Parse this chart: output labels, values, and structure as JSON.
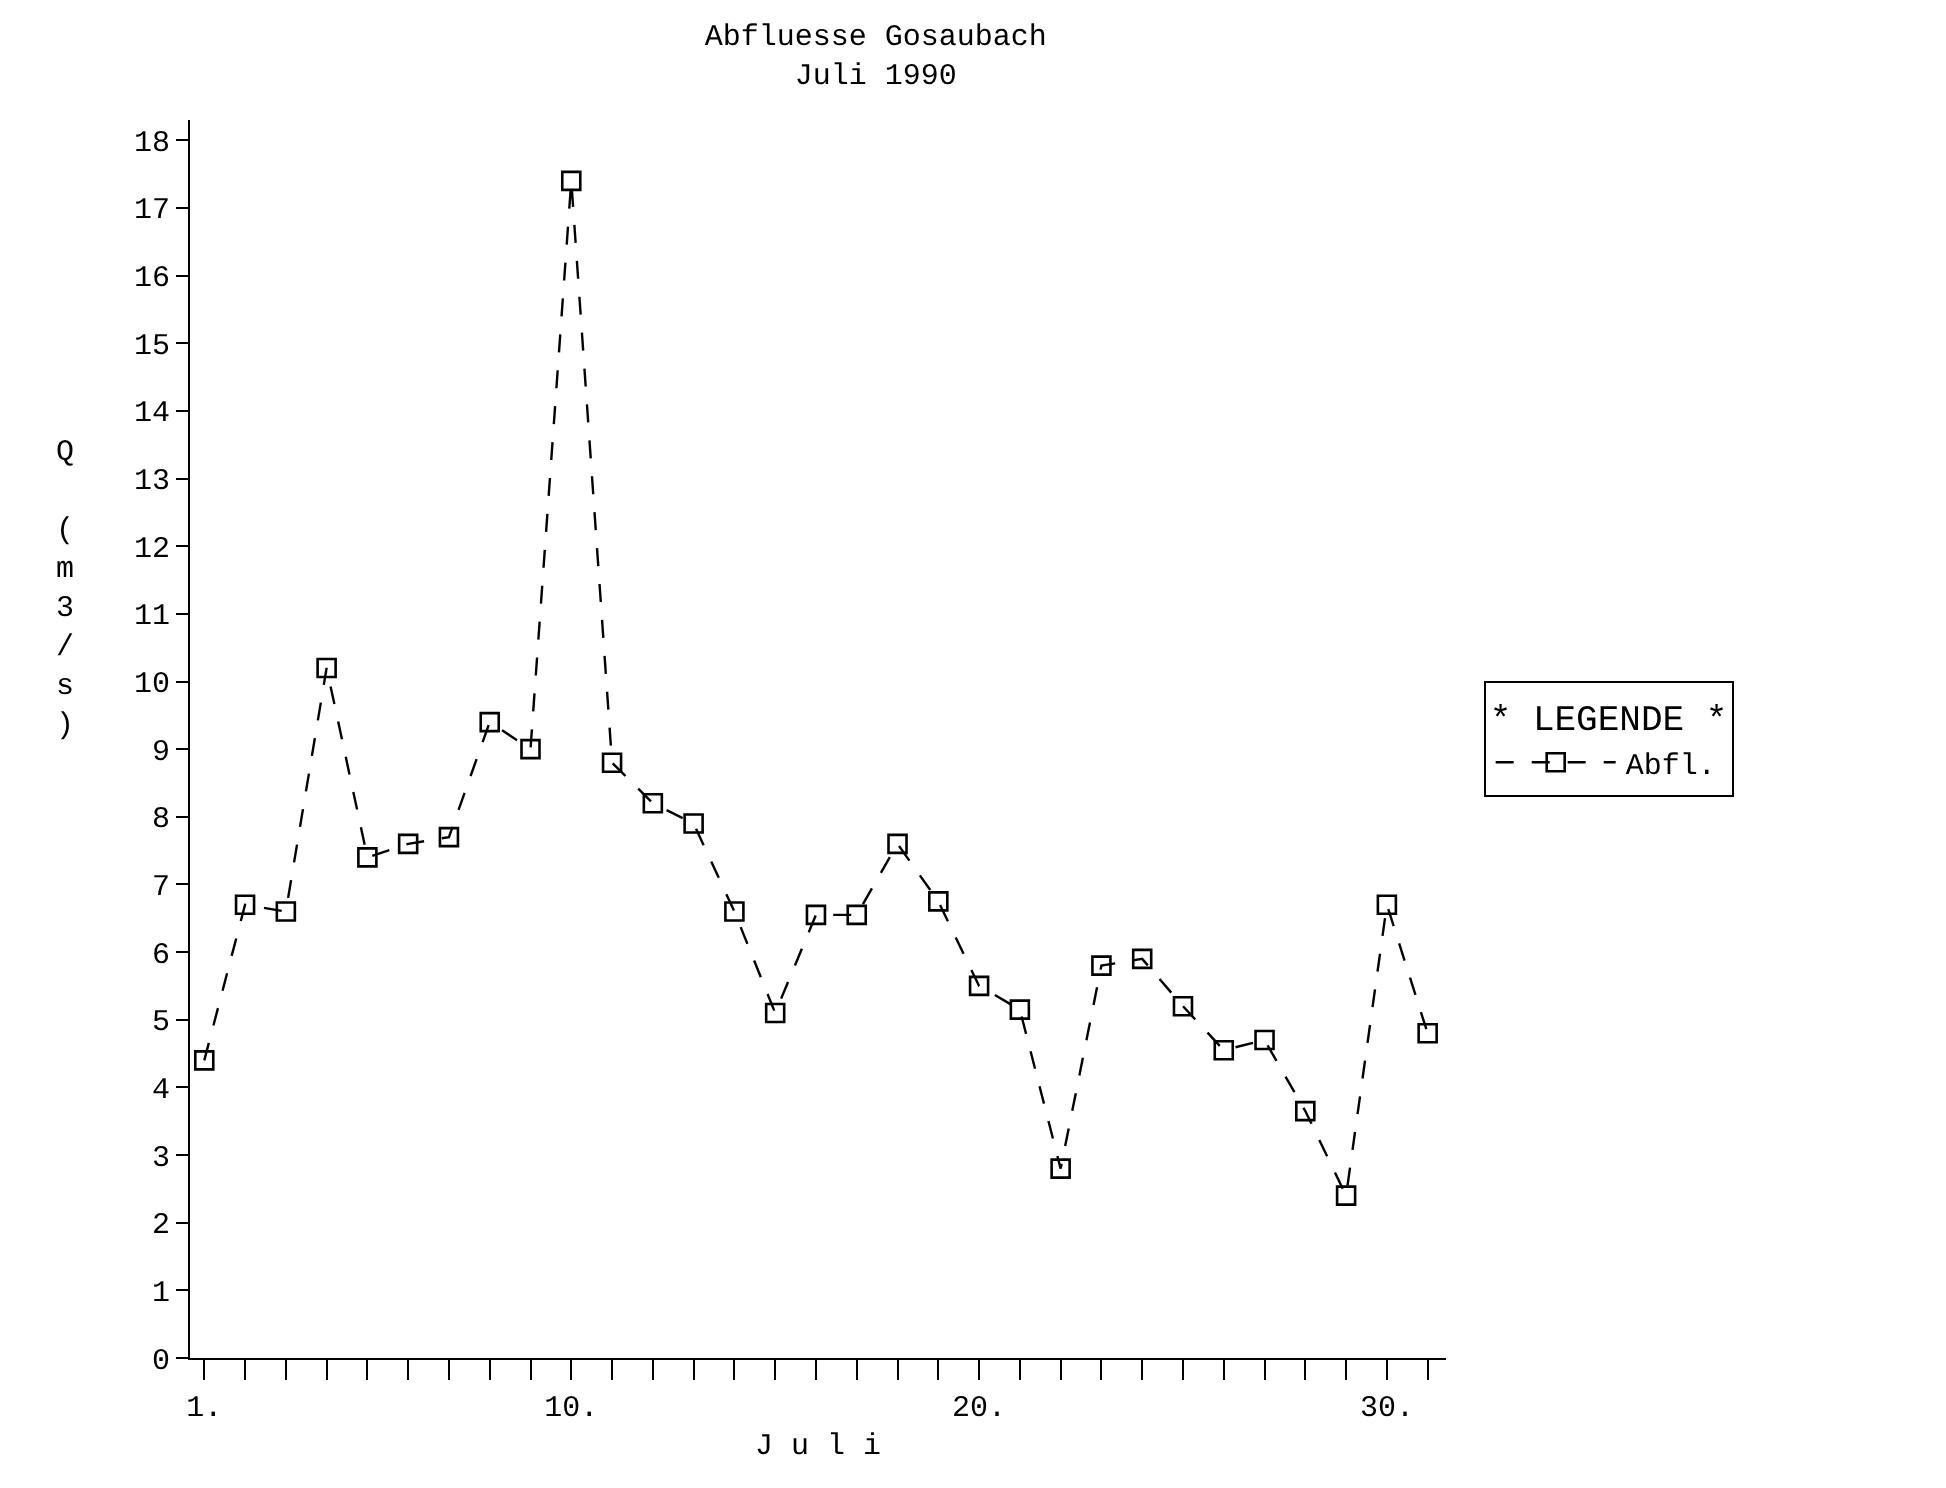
{
  "chart_data": {
    "type": "line",
    "title": "Abfluesse Gosaubach",
    "subtitle": "Juli 1990",
    "xlabel": "J u l i",
    "ylabel": "Q (m3/s)",
    "legend_title": "* LEGENDE *",
    "x": [
      1,
      2,
      3,
      4,
      5,
      6,
      7,
      8,
      9,
      10,
      11,
      12,
      13,
      14,
      15,
      16,
      17,
      18,
      19,
      20,
      21,
      22,
      23,
      24,
      25,
      26,
      27,
      28,
      29,
      30,
      31
    ],
    "series": [
      {
        "name": "Abfl.",
        "color": "#000000",
        "values": [
          4.4,
          6.7,
          6.6,
          10.2,
          7.4,
          7.6,
          7.7,
          9.4,
          9.0,
          17.4,
          8.8,
          8.2,
          7.9,
          6.6,
          5.1,
          6.55,
          6.55,
          7.6,
          6.75,
          5.5,
          5.15,
          2.8,
          5.8,
          5.9,
          5.2,
          4.55,
          4.7,
          3.65,
          2.4,
          6.7,
          4.8
        ]
      }
    ],
    "xlim": [
      0.65,
      31.45
    ],
    "ylim": [
      0,
      18.3
    ],
    "xticks": [
      {
        "value": 1,
        "label": "1."
      },
      {
        "value": 2,
        "label": null
      },
      {
        "value": 3,
        "label": null
      },
      {
        "value": 4,
        "label": null
      },
      {
        "value": 5,
        "label": null
      },
      {
        "value": 6,
        "label": null
      },
      {
        "value": 7,
        "label": null
      },
      {
        "value": 8,
        "label": null
      },
      {
        "value": 9,
        "label": null
      },
      {
        "value": 10,
        "label": "10."
      },
      {
        "value": 11,
        "label": null
      },
      {
        "value": 12,
        "label": null
      },
      {
        "value": 13,
        "label": null
      },
      {
        "value": 14,
        "label": null
      },
      {
        "value": 15,
        "label": null
      },
      {
        "value": 16,
        "label": null
      },
      {
        "value": 17,
        "label": null
      },
      {
        "value": 18,
        "label": null
      },
      {
        "value": 19,
        "label": null
      },
      {
        "value": 20,
        "label": "20."
      },
      {
        "value": 21,
        "label": null
      },
      {
        "value": 22,
        "label": null
      },
      {
        "value": 23,
        "label": null
      },
      {
        "value": 24,
        "label": null
      },
      {
        "value": 25,
        "label": null
      },
      {
        "value": 26,
        "label": null
      },
      {
        "value": 27,
        "label": null
      },
      {
        "value": 28,
        "label": null
      },
      {
        "value": 29,
        "label": null
      },
      {
        "value": 30,
        "label": "30."
      },
      {
        "value": 31,
        "label": null
      }
    ],
    "yticks": [
      0,
      1,
      2,
      3,
      4,
      5,
      6,
      7,
      8,
      9,
      10,
      11,
      12,
      13,
      14,
      15,
      16,
      17,
      18
    ],
    "legend": "right",
    "marker": "square",
    "line_style": "dashed"
  }
}
